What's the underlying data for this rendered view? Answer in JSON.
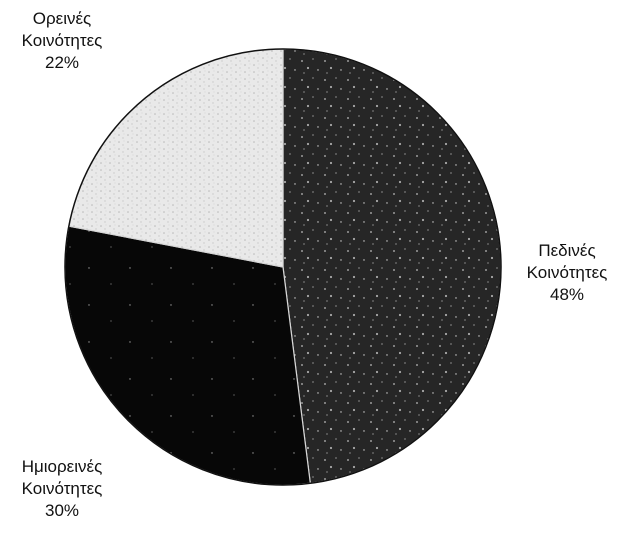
{
  "chart_data": {
    "type": "pie",
    "slices": [
      {
        "label_lines": [
          "Πεδινές",
          "Κοινότητες",
          "48%"
        ],
        "value": 48,
        "fill": "#262626"
      },
      {
        "label_lines": [
          "Ημιορεινές",
          "Κοινότητες",
          "30%"
        ],
        "value": 30,
        "fill": "#070707"
      },
      {
        "label_lines": [
          "Ορεινές",
          "Κοινότητες",
          "22%"
        ],
        "value": 22,
        "fill": "#e9e9e9"
      }
    ],
    "slice_outline_color": "#d6d6d6",
    "outer_edge_color": "#111111",
    "speckle_color": "#bdbdbd",
    "legend": "none"
  }
}
